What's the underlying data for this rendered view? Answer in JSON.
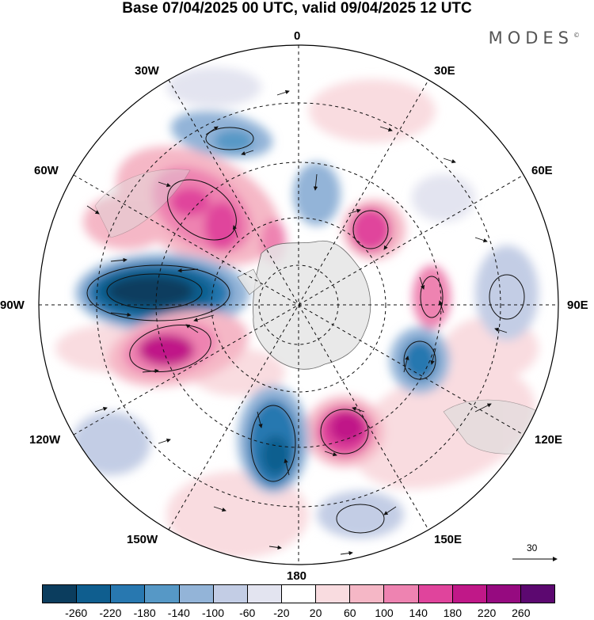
{
  "title": "Base 07/04/2025 00 UTC, valid 09/04/2025 12 UTC",
  "brand": "MODES",
  "brand_mark": "©",
  "longitude_labels": {
    "n0": "0",
    "n30e": "30E",
    "n60e": "60E",
    "n90e": "90E",
    "n120e": "120E",
    "n150e": "150E",
    "n180": "180",
    "n150w": "150W",
    "n120w": "120W",
    "n90w": "90W",
    "n60w": "60W",
    "n30w": "30W"
  },
  "vector_scale": "30",
  "colorbar": {
    "colors": [
      "#0b3d5e",
      "#0f5e8f",
      "#2878b0",
      "#5698c6",
      "#93b4d8",
      "#c3cde5",
      "#e3e4f0",
      "#ffffff",
      "#f9dce0",
      "#f5b7c6",
      "#ee83b1",
      "#e0449c",
      "#c01888",
      "#960a80",
      "#5c0870"
    ],
    "ticks": [
      "-260",
      "-220",
      "-180",
      "-140",
      "-100",
      "-60",
      "-20",
      "20",
      "60",
      "100",
      "140",
      "180",
      "220",
      "260"
    ]
  }
}
